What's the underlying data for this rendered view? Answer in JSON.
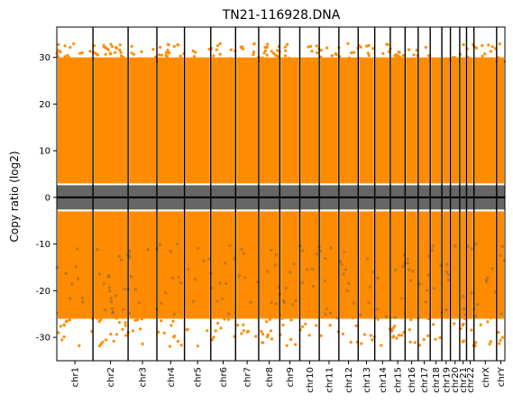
{
  "chart_data": {
    "type": "scatter",
    "title": "TN21-116928.DNA",
    "xlabel": "",
    "ylabel": "Copy ratio (log2)",
    "ylim": [
      -35,
      36.5
    ],
    "yticks": [
      30,
      20,
      10,
      0,
      -10,
      -20,
      -30
    ],
    "grid": false,
    "chromosomes": [
      "chr1",
      "chr2",
      "chr3",
      "chr4",
      "chr5",
      "chr6",
      "chr7",
      "chr8",
      "chr9",
      "chr10",
      "chr11",
      "chr12",
      "chr13",
      "chr14",
      "chr15",
      "chr16",
      "chr17",
      "chr18",
      "chr19",
      "chr20",
      "chr21",
      "chr22",
      "chrX",
      "chrY"
    ],
    "chromosome_sizes_mb": [
      249,
      242,
      198,
      190,
      181,
      171,
      159,
      145,
      138,
      134,
      135,
      133,
      114,
      107,
      102,
      90,
      83,
      80,
      59,
      64,
      47,
      51,
      156,
      57
    ],
    "series": [
      {
        "color": "#7f7f7f",
        "description_range": [
          -3,
          3
        ]
      },
      {
        "color": "#ff8c00"
      }
    ],
    "bands": {
      "upper": [
        3,
        30
      ],
      "lower": [
        -26,
        -3
      ]
    },
    "colors": {
      "segment": "#ff8c00",
      "bins": "#555555",
      "separator": "#000000"
    }
  }
}
